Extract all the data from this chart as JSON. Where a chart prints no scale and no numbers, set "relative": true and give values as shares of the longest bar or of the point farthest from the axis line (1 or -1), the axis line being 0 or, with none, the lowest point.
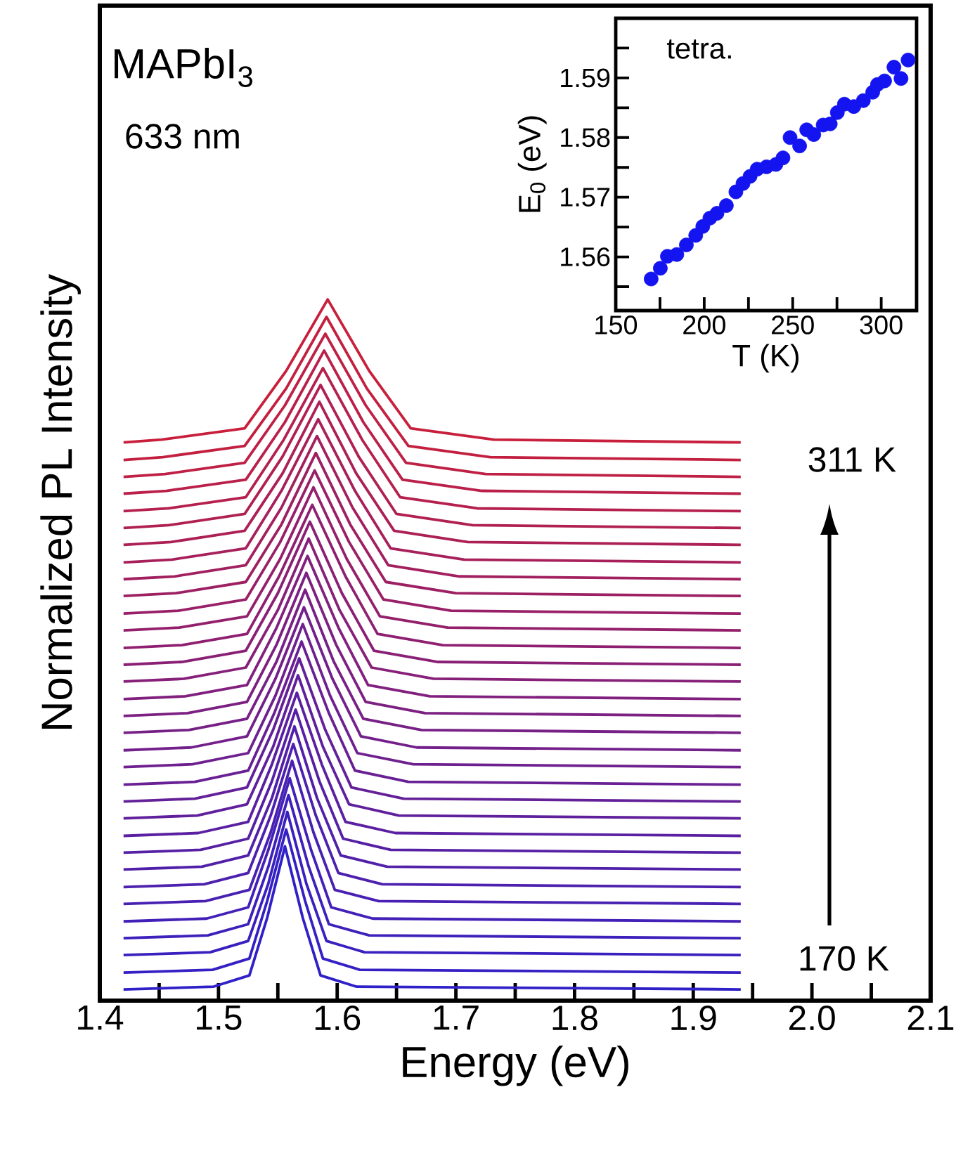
{
  "chart_data": [
    {
      "type": "line",
      "relative": true,
      "xlabel": "Energy (eV)",
      "ylabel": "Normalized PL Intensity",
      "marker": "none",
      "xlim": [
        1.4,
        2.1
      ],
      "xticks": [
        1.4,
        {
          "value": 1.45,
          "label": null
        },
        1.5,
        {
          "value": 1.55,
          "label": null
        },
        1.6,
        {
          "value": 1.65,
          "label": null
        },
        1.7,
        {
          "value": 1.75,
          "label": null
        },
        1.8,
        {
          "value": 1.85,
          "label": null
        },
        1.9,
        {
          "value": 1.95,
          "label": null
        },
        {
          "value": 2.0,
          "label": "2.0"
        },
        {
          "value": 2.05,
          "label": null
        },
        2.1
      ],
      "annotations": [
        "MAPbI$_{3}$",
        "633 nm",
        "311 K",
        "170 K"
      ],
      "series": [
        {
          "color": "#3020c8",
          "x": [
            1.42,
            1.496,
            1.526,
            1.541,
            1.556,
            1.571,
            1.586,
            1.616,
            1.94
          ],
          "values": [
            0.016,
            0.02,
            0.036,
            0.118,
            0.22,
            0.118,
            0.036,
            0.02,
            0.016
          ]
        },
        {
          "color": "#3520c4",
          "x": [
            1.42,
            1.495,
            1.526,
            1.541,
            1.557,
            1.573,
            1.588,
            1.619,
            1.94
          ],
          "values": [
            0.04,
            0.044,
            0.06,
            0.142,
            0.244,
            0.142,
            0.06,
            0.044,
            0.04
          ]
        },
        {
          "color": "#3a20bf",
          "x": [
            1.42,
            1.493,
            1.525,
            1.542,
            1.558,
            1.574,
            1.591,
            1.623,
            1.94
          ],
          "values": [
            0.065,
            0.069,
            0.085,
            0.167,
            0.269,
            0.167,
            0.085,
            0.069,
            0.065
          ]
        },
        {
          "color": "#3e20bb",
          "x": [
            1.42,
            1.491,
            1.525,
            1.542,
            1.559,
            1.576,
            1.593,
            1.627,
            1.94
          ],
          "values": [
            0.089,
            0.093,
            0.109,
            0.191,
            0.293,
            0.191,
            0.109,
            0.093,
            0.089
          ]
        },
        {
          "color": "#4320b7",
          "x": [
            1.42,
            1.49,
            1.525,
            1.542,
            1.56,
            1.578,
            1.595,
            1.63,
            1.94
          ],
          "values": [
            0.113,
            0.117,
            0.133,
            0.215,
            0.317,
            0.215,
            0.133,
            0.117,
            0.113
          ]
        },
        {
          "color": "#4820b2",
          "x": [
            1.42,
            1.489,
            1.526,
            1.544,
            1.562,
            1.58,
            1.598,
            1.635,
            1.94
          ],
          "values": [
            0.138,
            0.142,
            0.158,
            0.24,
            0.342,
            0.24,
            0.158,
            0.142,
            0.138
          ]
        },
        {
          "color": "#4d20ae",
          "x": [
            1.42,
            1.488,
            1.525,
            1.544,
            1.563,
            1.582,
            1.601,
            1.638,
            1.94
          ],
          "values": [
            0.162,
            0.166,
            0.182,
            0.264,
            0.366,
            0.264,
            0.182,
            0.166,
            0.162
          ]
        },
        {
          "color": "#5120a9",
          "x": [
            1.42,
            1.486,
            1.525,
            1.545,
            1.564,
            1.583,
            1.603,
            1.642,
            1.94
          ],
          "values": [
            0.187,
            0.191,
            0.207,
            0.289,
            0.391,
            0.289,
            0.207,
            0.191,
            0.187
          ]
        },
        {
          "color": "#5620a5",
          "x": [
            1.42,
            1.485,
            1.525,
            1.545,
            1.565,
            1.585,
            1.605,
            1.645,
            1.94
          ],
          "values": [
            0.211,
            0.215,
            0.231,
            0.313,
            0.415,
            0.313,
            0.231,
            0.215,
            0.211
          ]
        },
        {
          "color": "#5b20a1",
          "x": [
            1.42,
            1.483,
            1.525,
            1.545,
            1.566,
            1.587,
            1.607,
            1.649,
            1.94
          ],
          "values": [
            0.235,
            0.239,
            0.255,
            0.337,
            0.439,
            0.337,
            0.255,
            0.239,
            0.235
          ]
        },
        {
          "color": "#60209c",
          "x": [
            1.42,
            1.482,
            1.524,
            1.546,
            1.567,
            1.588,
            1.61,
            1.652,
            1.94
          ],
          "values": [
            0.26,
            0.264,
            0.28,
            0.362,
            0.464,
            0.362,
            0.28,
            0.264,
            0.26
          ]
        },
        {
          "color": "#642098",
          "x": [
            1.42,
            1.48,
            1.524,
            1.546,
            1.568,
            1.59,
            1.612,
            1.656,
            1.94
          ],
          "values": [
            0.284,
            0.288,
            0.304,
            0.386,
            0.488,
            0.386,
            0.304,
            0.288,
            0.284
          ]
        },
        {
          "color": "#692094",
          "x": [
            1.42,
            1.48,
            1.525,
            1.547,
            1.57,
            1.593,
            1.615,
            1.66,
            1.94
          ],
          "values": [
            0.308,
            0.312,
            0.328,
            0.41,
            0.512,
            0.41,
            0.328,
            0.312,
            0.308
          ]
        },
        {
          "color": "#6e208f",
          "x": [
            1.42,
            1.478,
            1.525,
            1.548,
            1.571,
            1.594,
            1.617,
            1.664,
            1.94
          ],
          "values": [
            0.333,
            0.337,
            0.353,
            0.435,
            0.537,
            0.435,
            0.353,
            0.337,
            0.333
          ]
        },
        {
          "color": "#73208b",
          "x": [
            1.42,
            1.477,
            1.524,
            1.548,
            1.572,
            1.596,
            1.62,
            1.667,
            1.94
          ],
          "values": [
            0.357,
            0.361,
            0.377,
            0.459,
            0.561,
            0.459,
            0.377,
            0.361,
            0.357
          ]
        },
        {
          "color": "#772086",
          "x": [
            1.42,
            1.475,
            1.524,
            1.549,
            1.573,
            1.597,
            1.622,
            1.671,
            1.94
          ],
          "values": [
            0.382,
            0.386,
            0.402,
            0.484,
            0.586,
            0.484,
            0.402,
            0.386,
            0.382
          ]
        },
        {
          "color": "#7c2082",
          "x": [
            1.42,
            1.474,
            1.524,
            1.549,
            1.574,
            1.599,
            1.624,
            1.674,
            1.94
          ],
          "values": [
            0.406,
            0.41,
            0.426,
            0.508,
            0.61,
            0.508,
            0.426,
            0.41,
            0.406
          ]
        },
        {
          "color": "#81207e",
          "x": [
            1.42,
            1.472,
            1.524,
            1.549,
            1.575,
            1.601,
            1.626,
            1.678,
            1.94
          ],
          "values": [
            0.43,
            0.434,
            0.45,
            0.532,
            0.634,
            0.532,
            0.45,
            0.434,
            0.43
          ]
        },
        {
          "color": "#862079",
          "x": [
            1.42,
            1.471,
            1.523,
            1.55,
            1.576,
            1.602,
            1.629,
            1.681,
            1.94
          ],
          "values": [
            0.455,
            0.459,
            0.475,
            0.557,
            0.659,
            0.557,
            0.475,
            0.459,
            0.455
          ]
        },
        {
          "color": "#8a2075",
          "x": [
            1.42,
            1.469,
            1.523,
            1.55,
            1.577,
            1.604,
            1.631,
            1.685,
            1.94
          ],
          "values": [
            0.479,
            0.483,
            0.499,
            0.581,
            0.683,
            0.581,
            0.499,
            0.483,
            0.479
          ]
        },
        {
          "color": "#8f2071",
          "x": [
            1.42,
            1.469,
            1.524,
            1.551,
            1.579,
            1.607,
            1.634,
            1.689,
            1.94
          ],
          "values": [
            0.503,
            0.507,
            0.523,
            0.605,
            0.707,
            0.605,
            0.523,
            0.507,
            0.503
          ]
        },
        {
          "color": "#94206c",
          "x": [
            1.42,
            1.467,
            1.524,
            1.552,
            1.58,
            1.608,
            1.636,
            1.693,
            1.94
          ],
          "values": [
            0.528,
            0.532,
            0.548,
            0.63,
            0.732,
            0.63,
            0.548,
            0.532,
            0.528
          ]
        },
        {
          "color": "#992068",
          "x": [
            1.42,
            1.466,
            1.523,
            1.552,
            1.581,
            1.61,
            1.639,
            1.696,
            1.94
          ],
          "values": [
            0.552,
            0.556,
            0.572,
            0.654,
            0.756,
            0.654,
            0.572,
            0.556,
            0.552
          ]
        },
        {
          "color": "#9d2063",
          "x": [
            1.42,
            1.464,
            1.523,
            1.553,
            1.582,
            1.611,
            1.641,
            1.7,
            1.94
          ],
          "values": [
            0.577,
            0.581,
            0.597,
            0.679,
            0.781,
            0.679,
            0.597,
            0.581,
            0.577
          ]
        },
        {
          "color": "#a2205f",
          "x": [
            1.42,
            1.463,
            1.523,
            1.553,
            1.583,
            1.613,
            1.643,
            1.703,
            1.94
          ],
          "values": [
            0.601,
            0.605,
            0.621,
            0.703,
            0.805,
            0.703,
            0.621,
            0.605,
            0.601
          ]
        },
        {
          "color": "#a7205b",
          "x": [
            1.42,
            1.461,
            1.523,
            1.553,
            1.584,
            1.615,
            1.645,
            1.707,
            1.94
          ],
          "values": [
            0.625,
            0.629,
            0.645,
            0.727,
            0.829,
            0.727,
            0.645,
            0.629,
            0.625
          ]
        },
        {
          "color": "#ac2056",
          "x": [
            1.42,
            1.46,
            1.522,
            1.554,
            1.585,
            1.616,
            1.648,
            1.71,
            1.94
          ],
          "values": [
            0.65,
            0.654,
            0.67,
            0.752,
            0.854,
            0.752,
            0.67,
            0.654,
            0.65
          ]
        },
        {
          "color": "#b02052",
          "x": [
            1.42,
            1.458,
            1.522,
            1.554,
            1.586,
            1.618,
            1.65,
            1.714,
            1.94
          ],
          "values": [
            0.674,
            0.678,
            0.694,
            0.776,
            0.878,
            0.776,
            0.694,
            0.678,
            0.674
          ]
        },
        {
          "color": "#b5204e",
          "x": [
            1.42,
            1.458,
            1.523,
            1.555,
            1.588,
            1.621,
            1.653,
            1.718,
            1.94
          ],
          "values": [
            0.698,
            0.702,
            0.718,
            0.8,
            0.902,
            0.8,
            0.718,
            0.702,
            0.698
          ]
        },
        {
          "color": "#ba2049",
          "x": [
            1.42,
            1.456,
            1.523,
            1.556,
            1.589,
            1.622,
            1.655,
            1.722,
            1.94
          ],
          "values": [
            0.723,
            0.727,
            0.743,
            0.825,
            0.927,
            0.825,
            0.743,
            0.727,
            0.723
          ]
        },
        {
          "color": "#bf2045",
          "x": [
            1.42,
            1.455,
            1.522,
            1.556,
            1.59,
            1.624,
            1.658,
            1.725,
            1.94
          ],
          "values": [
            0.747,
            0.751,
            0.767,
            0.849,
            0.951,
            0.849,
            0.767,
            0.751,
            0.747
          ]
        },
        {
          "color": "#c32040",
          "x": [
            1.42,
            1.453,
            1.522,
            1.557,
            1.591,
            1.625,
            1.66,
            1.729,
            1.94
          ],
          "values": [
            0.771,
            0.775,
            0.791,
            0.873,
            0.975,
            0.873,
            0.791,
            0.775,
            0.771
          ]
        },
        {
          "color": "#c8203c",
          "x": [
            1.42,
            1.452,
            1.522,
            1.557,
            1.592,
            1.627,
            1.662,
            1.732,
            1.94
          ],
          "values": [
            0.796,
            0.8,
            0.816,
            0.898,
            1.0,
            0.898,
            0.816,
            0.8,
            0.796
          ]
        }
      ]
    },
    {
      "type": "scatter",
      "xlabel": "T (K)",
      "ylabel": "E$_{0}$ (eV)",
      "marker": "circle",
      "annotations": [
        "tetra."
      ],
      "xlim": [
        150,
        320
      ],
      "ylim": [
        1.551,
        1.6
      ],
      "xticks": [
        150,
        {
          "value": 175,
          "label": null
        },
        200,
        {
          "value": 225,
          "label": null
        },
        250,
        {
          "value": 275,
          "label": null
        },
        300
      ],
      "yticks": [
        {
          "value": 1.555,
          "label": null
        },
        1.56,
        {
          "value": 1.565,
          "label": null
        },
        1.57,
        {
          "value": 1.575,
          "label": null
        },
        1.58,
        {
          "value": 1.585,
          "label": null
        },
        1.59,
        {
          "value": 1.595,
          "label": null
        }
      ],
      "series": [
        {
          "color": "#1414f0",
          "x": [
            170,
            175.2,
            179.2,
            184.5,
            189.9,
            195.2,
            199.2,
            203.2,
            207.2,
            212.5,
            217.9,
            221.9,
            225.9,
            229.9,
            235.2,
            240.5,
            244.5,
            248.5,
            253.9,
            257.9,
            261.9,
            267.2,
            271.2,
            275.2,
            279.2,
            284.5,
            289.9,
            295.2,
            297.9,
            301.9,
            307.2,
            311.2,
            315.2
          ],
          "values": [
            1.5563,
            1.5581,
            1.5601,
            1.5604,
            1.562,
            1.5636,
            1.5651,
            1.5665,
            1.5673,
            1.5686,
            1.5709,
            1.5723,
            1.5735,
            1.5747,
            1.5751,
            1.5755,
            1.5766,
            1.58,
            1.5786,
            1.5813,
            1.5805,
            1.5821,
            1.5823,
            1.5842,
            1.5856,
            1.5852,
            1.5862,
            1.5876,
            1.5889,
            1.5895,
            1.5918,
            1.5899,
            1.593
          ]
        }
      ]
    }
  ]
}
